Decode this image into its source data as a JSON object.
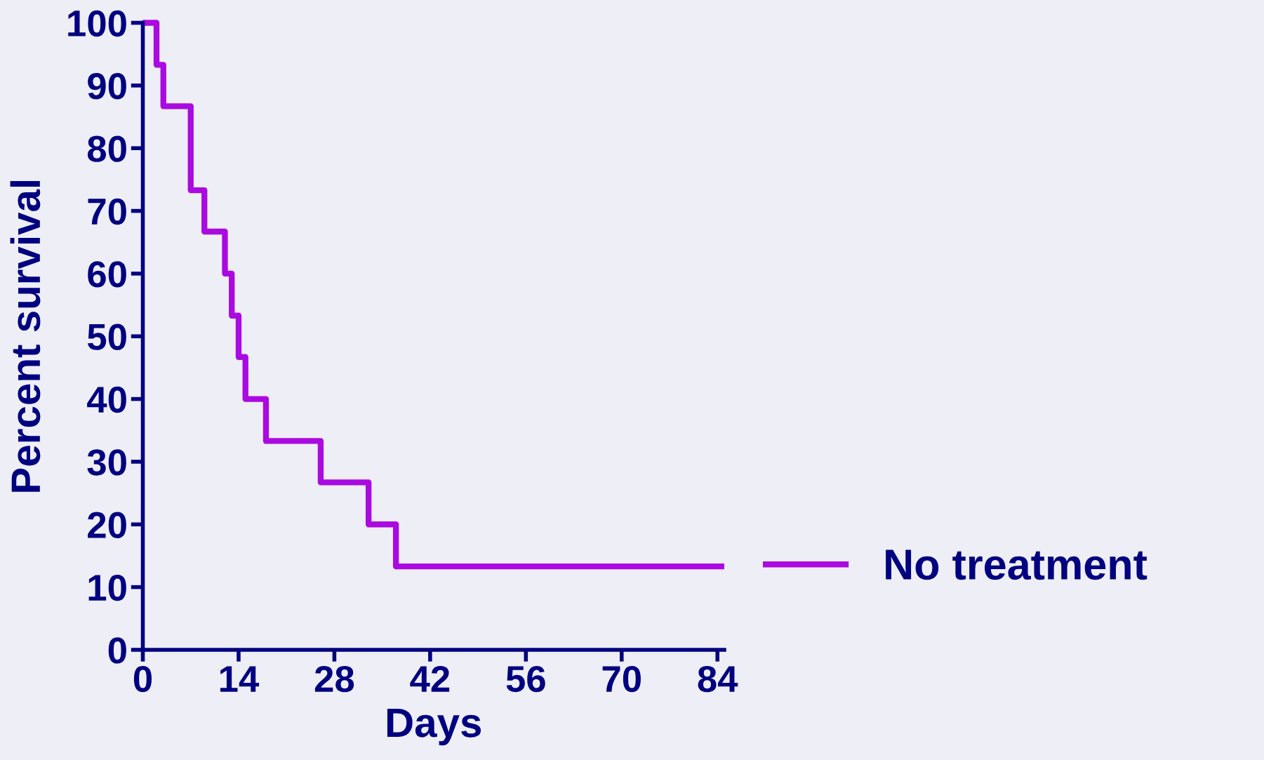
{
  "chart_data": {
    "type": "step",
    "xlabel": "Days",
    "ylabel": "Percent survival",
    "x": [
      0,
      2,
      3,
      7,
      9,
      12,
      13,
      14,
      15,
      18,
      26,
      33,
      37,
      85
    ],
    "series": [
      {
        "name": "No treatment",
        "color": "#aa0ae0",
        "values": [
          100,
          93.3,
          86.7,
          73.3,
          66.7,
          60,
          53.3,
          46.7,
          40,
          33.3,
          26.7,
          20,
          13.3,
          13.3
        ]
      }
    ],
    "xlim": [
      0,
      85
    ],
    "ylim": [
      0,
      100
    ],
    "xticks": [
      0,
      14,
      28,
      42,
      56,
      70,
      84
    ],
    "yticks": [
      0,
      10,
      20,
      30,
      40,
      50,
      60,
      70,
      80,
      90,
      100
    ],
    "grid": false,
    "legend": "right",
    "marker": "none",
    "line_style": "solid"
  }
}
